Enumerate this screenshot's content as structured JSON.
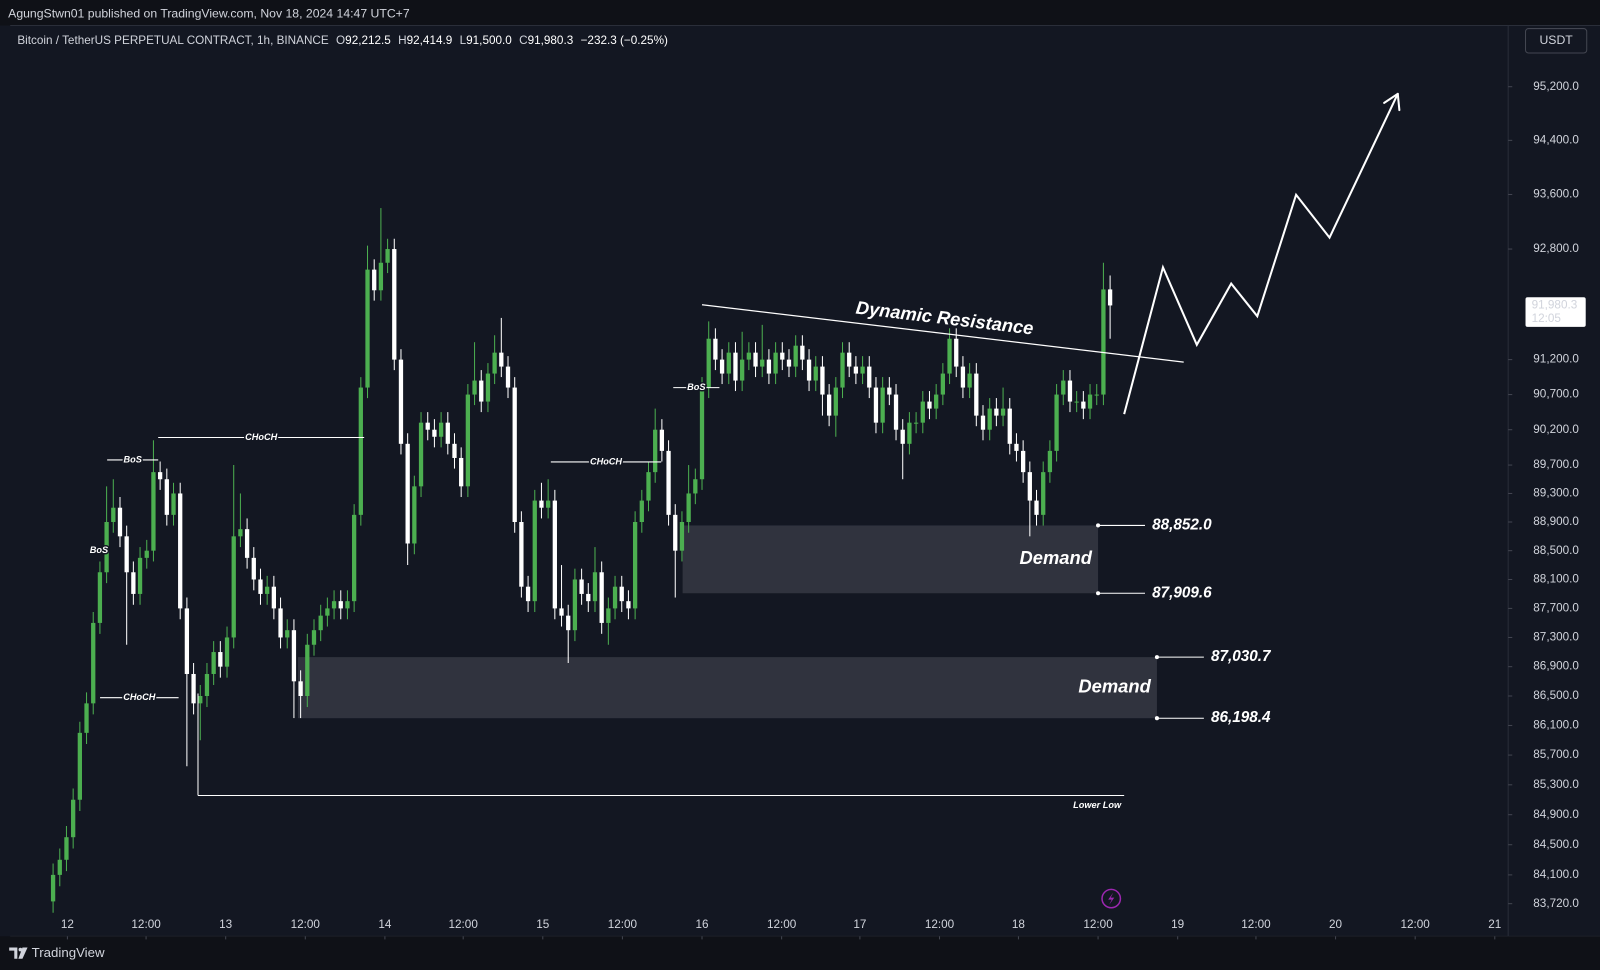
{
  "topbar": {
    "text": "AgungStwn01 published on TradingView.com, Nov 18, 2024 14:47 UTC+7"
  },
  "header": {
    "symbol": "Bitcoin / TetherUS PERPETUAL CONTRACT, 1h, BINANCE",
    "ohlc": [
      {
        "key": "O",
        "value": "92,212.5"
      },
      {
        "key": "H",
        "value": "92,414.9"
      },
      {
        "key": "L",
        "value": "91,500.0"
      },
      {
        "key": "C",
        "value": "91,980.3"
      }
    ],
    "change": "−232.3 (−0.25%)"
  },
  "currency": "USDT",
  "footer": {
    "brand": "TradingView"
  },
  "chart_data": {
    "type": "candlestick",
    "log_scale": true,
    "grid": false,
    "up_color": "#4caf50",
    "down_color": "#ffffff",
    "open": [
      83750,
      84100,
      84300,
      84600,
      85100,
      86000,
      86400,
      87500,
      88200,
      88900,
      89100,
      88700,
      88200,
      87900,
      88400,
      88500,
      89600,
      89500,
      89000,
      89300,
      87700,
      86800,
      86400,
      86500,
      86800,
      87100,
      86900,
      87300,
      88700,
      88800,
      88400,
      88100,
      87900,
      88000,
      87700,
      87300,
      87400,
      86700,
      86500,
      87200,
      87400,
      87600,
      87700,
      87800,
      87700,
      87800,
      89000,
      90800,
      92500,
      92200,
      92600,
      92800,
      91200,
      90000,
      88600,
      89400,
      90300,
      90200,
      90100,
      90300,
      90000,
      89800,
      89400,
      90700,
      90900,
      90600,
      91000,
      91300,
      91100,
      90800,
      88900,
      88000,
      87800,
      89200,
      89100,
      89200,
      87700,
      87600,
      87400,
      88100,
      87900,
      87800,
      88200,
      87500,
      87700,
      88000,
      87800,
      87700,
      88900,
      89200,
      89600,
      90200,
      89900,
      89000,
      88500,
      88900,
      89300,
      89500,
      90800,
      91500,
      91200,
      91000,
      91300,
      90900,
      91200,
      91300,
      91100,
      91200,
      91000,
      91300,
      91200,
      91100,
      91400,
      91200,
      90900,
      91100,
      90700,
      90400,
      90800,
      91300,
      91100,
      91000,
      91100,
      90800,
      90300,
      90800,
      90700,
      90200,
      90000,
      90300,
      90300,
      90600,
      90500,
      90700,
      91000,
      91500,
      91100,
      90800,
      91000,
      90400,
      90200,
      90500,
      90400,
      90500,
      90000,
      89900,
      89600,
      89200,
      89000,
      89600,
      89900,
      90700,
      90900,
      90600,
      90600,
      90500,
      90700,
      90700,
      92212.5
    ],
    "high": [
      84250,
      84450,
      84750,
      85250,
      86150,
      86550,
      87650,
      88350,
      89400,
      89500,
      89250,
      88850,
      88350,
      88550,
      88650,
      90050,
      89750,
      89650,
      89450,
      89450,
      87850,
      86950,
      86650,
      86950,
      87250,
      87250,
      87450,
      89700,
      89300,
      88950,
      88550,
      88250,
      88150,
      88150,
      87850,
      87550,
      87550,
      86850,
      87350,
      87550,
      87750,
      87850,
      87950,
      87950,
      87950,
      89150,
      90950,
      92850,
      92650,
      93400,
      92950,
      92950,
      91350,
      90150,
      89550,
      90450,
      90450,
      90350,
      90450,
      90450,
      90150,
      89950,
      90850,
      91450,
      91050,
      91150,
      91550,
      91800,
      91250,
      90950,
      89050,
      88150,
      89350,
      89450,
      89500,
      89350,
      88300,
      87750,
      88250,
      88250,
      88050,
      88550,
      88350,
      87850,
      88150,
      88150,
      87950,
      89050,
      89350,
      89750,
      90500,
      90350,
      90050,
      89150,
      89050,
      89700,
      89650,
      90950,
      91750,
      91650,
      91350,
      91450,
      91450,
      91600,
      91450,
      91450,
      91700,
      91350,
      91450,
      91450,
      91350,
      91550,
      91550,
      91350,
      91250,
      91250,
      90850,
      90950,
      91450,
      91450,
      91250,
      91250,
      91250,
      90950,
      90950,
      90950,
      90850,
      90350,
      90450,
      90450,
      90750,
      90750,
      90850,
      91150,
      91650,
      91650,
      91250,
      91150,
      91150,
      90550,
      90650,
      90650,
      90800,
      90650,
      90150,
      90050,
      89750,
      89350,
      89750,
      90050,
      90850,
      91050,
      91050,
      90750,
      90750,
      90850,
      90850,
      92600,
      92414.9
    ],
    "low": [
      83600,
      83950,
      84150,
      84450,
      84950,
      85850,
      86250,
      87350,
      88050,
      88750,
      88550,
      87200,
      87750,
      87750,
      88250,
      88350,
      89350,
      88850,
      88850,
      87550,
      85550,
      86250,
      85900,
      86350,
      86650,
      86750,
      86750,
      87150,
      88550,
      88250,
      87950,
      87750,
      87750,
      87550,
      87150,
      87150,
      86200,
      86200,
      86350,
      87050,
      87250,
      87450,
      87550,
      87550,
      87550,
      87650,
      88850,
      90650,
      92050,
      92050,
      92450,
      91050,
      89850,
      88300,
      88450,
      89250,
      90050,
      89950,
      89950,
      89850,
      89650,
      89250,
      89250,
      90550,
      90450,
      90450,
      90850,
      90950,
      90650,
      88750,
      87850,
      87650,
      87650,
      88950,
      88950,
      87550,
      87450,
      86950,
      87250,
      87750,
      87650,
      87650,
      87350,
      87200,
      87550,
      87650,
      87550,
      87550,
      88750,
      89050,
      89450,
      89750,
      88850,
      87850,
      88350,
      88750,
      89150,
      89350,
      90650,
      91050,
      90850,
      90850,
      90750,
      90750,
      91050,
      90950,
      90950,
      90850,
      90850,
      91050,
      90950,
      90950,
      91050,
      90750,
      90750,
      90400,
      90250,
      90100,
      90650,
      90950,
      90850,
      90850,
      90650,
      90150,
      90150,
      90550,
      90050,
      89500,
      89850,
      90150,
      90150,
      90350,
      90350,
      90550,
      90850,
      90950,
      90650,
      90650,
      90250,
      90050,
      90050,
      90250,
      90250,
      89850,
      89750,
      89450,
      88700,
      88850,
      88850,
      89450,
      89750,
      90550,
      90450,
      90450,
      90350,
      90350,
      90550,
      90550,
      91500.0
    ],
    "close": [
      84100,
      84300,
      84600,
      85100,
      86000,
      86400,
      87500,
      88200,
      88900,
      89100,
      88700,
      88200,
      87900,
      88400,
      88500,
      89600,
      89500,
      89000,
      89300,
      87700,
      86800,
      86400,
      86500,
      86800,
      87100,
      86900,
      87300,
      88700,
      88800,
      88400,
      88100,
      87900,
      88000,
      87700,
      87300,
      87400,
      86700,
      86500,
      87200,
      87400,
      87600,
      87700,
      87800,
      87700,
      87800,
      89000,
      90800,
      92500,
      92200,
      92600,
      92800,
      91200,
      90000,
      88600,
      89400,
      90300,
      90200,
      90100,
      90300,
      90000,
      89800,
      89400,
      90700,
      90900,
      90600,
      91000,
      91300,
      91100,
      90800,
      88900,
      88000,
      87800,
      89200,
      89100,
      89200,
      87700,
      87600,
      87400,
      88100,
      87900,
      87800,
      88200,
      87500,
      87700,
      88000,
      87800,
      87700,
      88900,
      89200,
      89600,
      90200,
      89900,
      89000,
      88500,
      88900,
      89300,
      89500,
      90800,
      91500,
      91200,
      91000,
      91300,
      90900,
      91200,
      91300,
      91100,
      91200,
      91000,
      91300,
      91200,
      91100,
      91400,
      91200,
      90900,
      91100,
      90700,
      90400,
      90800,
      91300,
      91100,
      91000,
      91100,
      90800,
      90300,
      90800,
      90700,
      90200,
      90000,
      90300,
      90300,
      90600,
      90500,
      90700,
      91000,
      91500,
      91100,
      90800,
      91000,
      90400,
      90200,
      90500,
      90400,
      90500,
      90000,
      89900,
      89600,
      89200,
      89000,
      89600,
      89900,
      90700,
      90900,
      90600,
      90600,
      90500,
      90700,
      90700,
      92212.5,
      91980.3
    ],
    "xlim": [
      -6.41,
      217.5
    ],
    "xticks": [
      {
        "value": 2.14,
        "label": "12"
      },
      {
        "value": 13.9,
        "label": "12:00"
      },
      {
        "value": 25.8,
        "label": "13"
      },
      {
        "value": 37.7,
        "label": "12:00"
      },
      {
        "value": 49.6,
        "label": "14"
      },
      {
        "value": 61.3,
        "label": "12:00"
      },
      {
        "value": 73.2,
        "label": "15"
      },
      {
        "value": 85.1,
        "label": "12:00"
      },
      {
        "value": 97.0,
        "label": "16"
      },
      {
        "value": 108.9,
        "label": "12:00"
      },
      {
        "value": 120.6,
        "label": "17"
      },
      {
        "value": 132.5,
        "label": "12:00"
      },
      {
        "value": 144.3,
        "label": "18"
      },
      {
        "value": 156.2,
        "label": "12:00"
      },
      {
        "value": 168.1,
        "label": "19"
      },
      {
        "value": 179.8,
        "label": "12:00"
      },
      {
        "value": 191.7,
        "label": "20"
      },
      {
        "value": 203.6,
        "label": "12:00"
      },
      {
        "value": 215.5,
        "label": "21"
      }
    ],
    "ylim": [
      83291,
      96121
    ],
    "yticks": [
      {
        "value": 95200,
        "label": "95,200.0"
      },
      {
        "value": 94400,
        "label": "94,400.0"
      },
      {
        "value": 93600,
        "label": "93,600.0"
      },
      {
        "value": 92800,
        "label": "92,800.0"
      },
      {
        "value": 91200,
        "label": "91,200.0"
      },
      {
        "value": 90700,
        "label": "90,700.0"
      },
      {
        "value": 90200,
        "label": "90,200.0"
      },
      {
        "value": 89700,
        "label": "89,700.0"
      },
      {
        "value": 89300,
        "label": "89,300.0"
      },
      {
        "value": 88900,
        "label": "88,900.0"
      },
      {
        "value": 88500,
        "label": "88,500.0"
      },
      {
        "value": 88100,
        "label": "88,100.0"
      },
      {
        "value": 87700,
        "label": "87,700.0"
      },
      {
        "value": 87300,
        "label": "87,300.0"
      },
      {
        "value": 86900,
        "label": "86,900.0"
      },
      {
        "value": 86500,
        "label": "86,500.0"
      },
      {
        "value": 86100,
        "label": "86,100.0"
      },
      {
        "value": 85700,
        "label": "85,700.0"
      },
      {
        "value": 85300,
        "label": "85,300.0"
      },
      {
        "value": 84900,
        "label": "84,900.0"
      },
      {
        "value": 84500,
        "label": "84,500.0"
      },
      {
        "value": 84100,
        "label": "84,100.0"
      },
      {
        "value": 83720,
        "label": "83,720.0"
      }
    ],
    "price_label": {
      "value": 91980.3,
      "label": "91,980.3",
      "countdown": "12:05"
    },
    "structure": [
      {
        "label": "BoS",
        "level": 89772,
        "from": 8.08,
        "to": 15.71
      },
      {
        "label": "BoS",
        "level": 88498,
        "from": 5.8,
        "to": 7.9
      },
      {
        "label": "CHoCH",
        "level": 90089,
        "from": 15.71,
        "to": 46.5
      },
      {
        "label": "CHoCH",
        "level": 86477,
        "from": 7.02,
        "to": 18.76
      },
      {
        "label": "CHoCH",
        "level": 89744,
        "from": 74.4,
        "to": 90.9
      },
      {
        "label": "BoS",
        "level": 90799,
        "from": 92.7,
        "to": 99.6
      }
    ],
    "lower_low": {
      "label": "Lower Low",
      "level": 85157,
      "from": 21.66,
      "to": 160.1
    },
    "zones": [
      {
        "label": "Demand",
        "top": 88852.0,
        "bottom": 87909.6,
        "top_label": "88,852.0",
        "bottom_label": "87,909.6",
        "from": 94.1,
        "to": 156.2
      },
      {
        "label": "Demand",
        "top": 87030.7,
        "bottom": 86198.4,
        "top_label": "87,030.7",
        "bottom_label": "86,198.4",
        "from": 36.6,
        "to": 165.0
      }
    ],
    "resistance": {
      "label": "Dynamic Resistance",
      "x": [
        97.0,
        169.0
      ],
      "y": [
        91990,
        91164
      ]
    },
    "forecast": {
      "x": [
        160.1,
        165.9,
        170.96,
        176.1,
        180.0,
        185.8,
        190.8,
        201.0
      ],
      "y": [
        90422,
        92534,
        91413,
        92297,
        91825,
        93595,
        92967,
        95093
      ]
    }
  }
}
